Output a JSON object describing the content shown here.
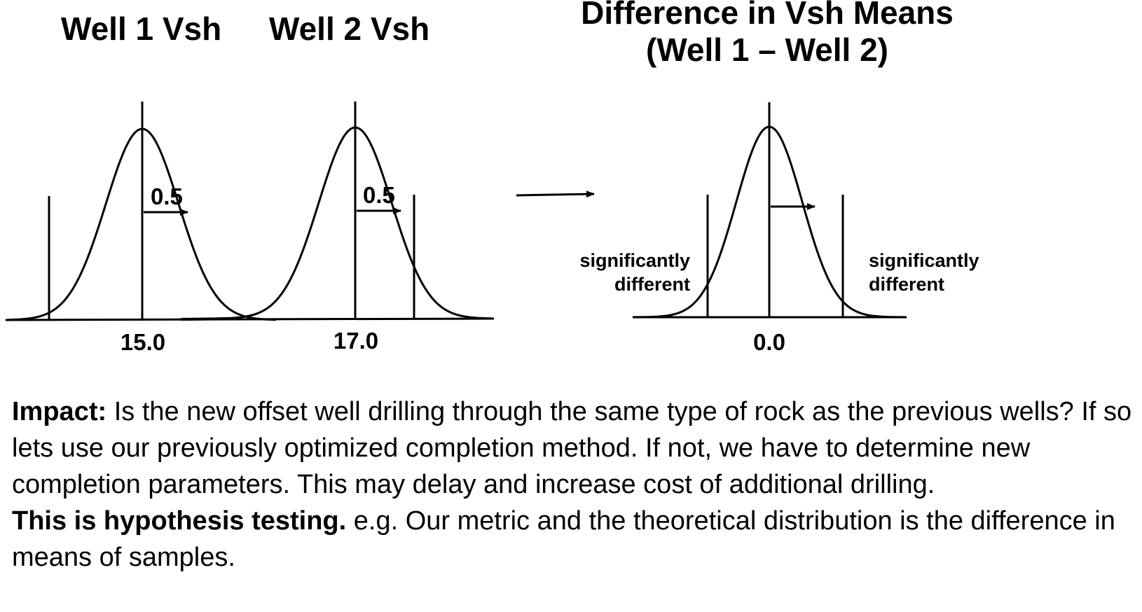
{
  "titles": {
    "well1": "Well 1 Vsh",
    "well2": "Well 2 Vsh",
    "difference_line1": "Difference in Vsh Means",
    "difference_line2": "(Well 1 – Well 2)"
  },
  "curves": {
    "well1": {
      "mean_label": "15.0",
      "sd_label": "0.5"
    },
    "well2": {
      "mean_label": "17.0",
      "sd_label": "0.5"
    },
    "difference": {
      "mean_label": "0.0",
      "left_region_line1": "significantly",
      "left_region_line2": "different",
      "right_region_line1": "significantly",
      "right_region_line2": "different"
    }
  },
  "text": {
    "impact_lead": "Impact:",
    "impact_body": " Is the new offset well drilling through the same type of rock as the previous wells?  If so lets use our previously optimized completion method.  If not, we have to determine new completion parameters.  This may delay and increase cost of additional drilling.",
    "hypothesis_lead": "This is hypothesis testing.",
    "hypothesis_body": "  e.g. Our metric and the theoretical distribution is the difference in means of samples."
  }
}
